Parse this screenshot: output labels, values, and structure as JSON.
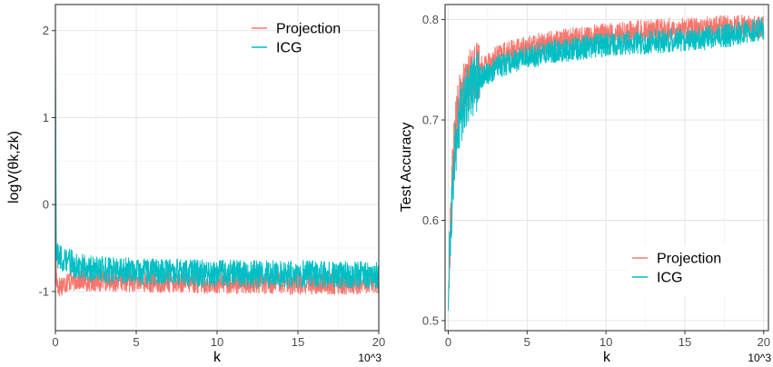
{
  "chart_data": [
    {
      "type": "line",
      "xlabel": "k",
      "x_unit_note": "10^3",
      "ylabel": "logV(θk,zk)",
      "xlim": [
        0,
        20
      ],
      "ylim": [
        -1.45,
        2.3
      ],
      "xticks": [
        0,
        5,
        10,
        15,
        20
      ],
      "yticks": [
        -1,
        0,
        1,
        2
      ],
      "grid": true,
      "legend_position": "top-right",
      "series": [
        {
          "name": "Projection",
          "color": "#F8766D",
          "x": [
            0,
            0.05,
            0.1,
            0.2,
            0.4,
            0.6,
            0.8,
            1,
            1.5,
            2,
            3,
            4,
            5,
            6,
            7,
            8,
            9,
            10,
            11,
            12,
            13,
            14,
            15,
            16,
            17,
            18,
            19,
            20
          ],
          "y": [
            1.95,
            -0.85,
            -0.9,
            -0.95,
            -0.92,
            -0.9,
            -0.88,
            -0.87,
            -0.86,
            -0.87,
            -0.87,
            -0.88,
            -0.88,
            -0.89,
            -0.89,
            -0.89,
            -0.9,
            -0.9,
            -0.9,
            -0.9,
            -0.9,
            -0.9,
            -0.91,
            -0.91,
            -0.91,
            -0.91,
            -0.9,
            -0.9
          ]
        },
        {
          "name": "ICG",
          "color": "#00BFC4",
          "x": [
            0,
            0.05,
            0.1,
            0.2,
            0.4,
            0.6,
            0.8,
            1,
            1.5,
            2,
            3,
            4,
            5,
            6,
            7,
            8,
            9,
            10,
            11,
            12,
            13,
            14,
            15,
            16,
            17,
            18,
            19,
            20
          ],
          "y": [
            1.98,
            -0.5,
            -0.6,
            -0.62,
            -0.62,
            -0.63,
            -0.65,
            -0.68,
            -0.72,
            -0.74,
            -0.75,
            -0.76,
            -0.77,
            -0.77,
            -0.78,
            -0.78,
            -0.79,
            -0.79,
            -0.79,
            -0.8,
            -0.8,
            -0.8,
            -0.8,
            -0.8,
            -0.81,
            -0.81,
            -0.81,
            -0.82
          ]
        }
      ]
    },
    {
      "type": "line",
      "xlabel": "k",
      "x_unit_note": "10^3",
      "ylabel": "Test Accuracy",
      "xlim": [
        -0.2,
        20.3
      ],
      "ylim": [
        0.49,
        0.815
      ],
      "xticks": [
        0,
        5,
        10,
        15,
        20
      ],
      "yticks": [
        0.5,
        0.6,
        0.7,
        0.8
      ],
      "grid": true,
      "legend_position": "bottom-right",
      "series": [
        {
          "name": "Projection",
          "color": "#F8766D",
          "x": [
            0,
            0.1,
            0.2,
            0.3,
            0.5,
            0.7,
            1,
            1.5,
            2,
            3,
            4,
            5,
            6,
            7,
            8,
            9,
            10,
            11,
            12,
            13,
            14,
            15,
            16,
            17,
            18,
            19,
            20
          ],
          "y": [
            0.51,
            0.58,
            0.62,
            0.66,
            0.695,
            0.715,
            0.73,
            0.745,
            0.752,
            0.762,
            0.768,
            0.772,
            0.776,
            0.779,
            0.781,
            0.783,
            0.785,
            0.786,
            0.788,
            0.789,
            0.79,
            0.791,
            0.791,
            0.792,
            0.793,
            0.793,
            0.792
          ]
        },
        {
          "name": "ICG",
          "color": "#00BFC4",
          "x": [
            0,
            0.1,
            0.2,
            0.3,
            0.5,
            0.7,
            1,
            1.5,
            2,
            3,
            4,
            5,
            6,
            7,
            8,
            9,
            10,
            11,
            12,
            13,
            14,
            15,
            16,
            17,
            18,
            19,
            20
          ],
          "y": [
            0.51,
            0.57,
            0.605,
            0.64,
            0.675,
            0.7,
            0.715,
            0.732,
            0.742,
            0.752,
            0.758,
            0.763,
            0.766,
            0.769,
            0.771,
            0.773,
            0.775,
            0.776,
            0.777,
            0.778,
            0.779,
            0.78,
            0.781,
            0.783,
            0.785,
            0.788,
            0.791
          ]
        }
      ]
    }
  ]
}
